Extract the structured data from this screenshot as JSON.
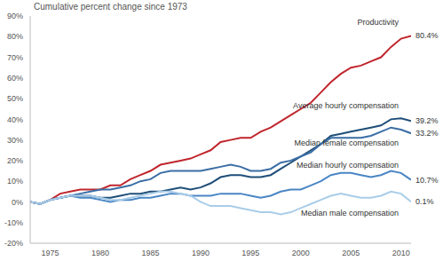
{
  "chart_data": {
    "type": "line",
    "title": "Cumulative percent change since 1973",
    "grid": false,
    "x": [
      1973,
      1974,
      1975,
      1976,
      1977,
      1978,
      1979,
      1980,
      1981,
      1982,
      1983,
      1984,
      1985,
      1986,
      1987,
      1988,
      1989,
      1990,
      1991,
      1992,
      1993,
      1994,
      1995,
      1996,
      1997,
      1998,
      1999,
      2000,
      2001,
      2002,
      2003,
      2004,
      2005,
      2006,
      2007,
      2008,
      2009,
      2010,
      2011
    ],
    "xlim": [
      1973,
      2011
    ],
    "xticks": [
      1975,
      1980,
      1985,
      1990,
      1995,
      2000,
      2005,
      2010
    ],
    "ylim": [
      -20,
      90
    ],
    "yticks": [
      {
        "value": -20,
        "label": "-20%"
      },
      {
        "value": -10,
        "label": "-10%"
      },
      {
        "value": 0,
        "label": "0%"
      },
      {
        "value": 10,
        "label": "10%"
      },
      {
        "value": 20,
        "label": "20%"
      },
      {
        "value": 30,
        "label": "30%"
      },
      {
        "value": 40,
        "label": "40%"
      },
      {
        "value": 50,
        "label": "50%"
      },
      {
        "value": 60,
        "label": "60%"
      },
      {
        "value": 70,
        "label": "70%"
      },
      {
        "value": 80,
        "label": "80%"
      },
      {
        "value": 90,
        "label": "90%"
      }
    ],
    "series": [
      {
        "name": "Productivity",
        "color": "#c0262d",
        "values": [
          0,
          -1,
          1,
          4,
          5,
          6,
          6,
          6,
          8,
          8,
          11,
          13,
          15,
          18,
          19,
          20,
          21,
          23,
          25,
          29,
          30,
          31,
          31,
          34,
          36,
          39,
          42,
          45,
          48,
          53,
          58,
          62,
          65,
          66,
          68,
          70,
          75,
          79,
          80.4
        ],
        "value_labels": [
          null,
          null,
          null,
          null,
          null,
          null,
          null,
          null,
          null,
          null,
          null,
          null,
          null,
          null,
          null,
          null,
          null,
          null,
          null,
          null,
          null,
          null,
          null,
          null,
          null,
          null,
          null,
          null,
          null,
          null,
          null,
          null,
          null,
          null,
          null,
          null,
          null,
          null,
          "80.4%"
        ]
      },
      {
        "name": "Average hourly compensation",
        "color": "#1f4e79",
        "values": [
          0,
          -1,
          1,
          2,
          3,
          3,
          3,
          2,
          2,
          3,
          4,
          4,
          5,
          5,
          6,
          7,
          6,
          7,
          9,
          12,
          13,
          13,
          12,
          12,
          13,
          16,
          19,
          22,
          25,
          28,
          32,
          33,
          34,
          35,
          36,
          37,
          40,
          40.5,
          39.2
        ],
        "value_labels": [
          null,
          null,
          null,
          null,
          null,
          null,
          null,
          null,
          null,
          null,
          null,
          null,
          null,
          null,
          null,
          null,
          null,
          null,
          null,
          null,
          null,
          null,
          null,
          null,
          null,
          null,
          null,
          null,
          null,
          null,
          null,
          null,
          null,
          null,
          null,
          null,
          null,
          null,
          "39.2%"
        ]
      },
      {
        "name": "Median female compensation",
        "color": "#3a6ea5",
        "values": [
          0,
          -1,
          1,
          2,
          3,
          4,
          5,
          6,
          6,
          7,
          8,
          10,
          11,
          14,
          15,
          15,
          15,
          15,
          16,
          17,
          18,
          17,
          15,
          15,
          16,
          19,
          20,
          22,
          24,
          28,
          31,
          31,
          31,
          31,
          32,
          34,
          36,
          35,
          33.2
        ],
        "value_labels": [
          null,
          null,
          null,
          null,
          null,
          null,
          null,
          null,
          null,
          null,
          null,
          null,
          null,
          null,
          null,
          null,
          null,
          null,
          null,
          null,
          null,
          null,
          null,
          null,
          null,
          null,
          null,
          null,
          null,
          null,
          null,
          null,
          null,
          null,
          null,
          null,
          null,
          null,
          "33.2%"
        ]
      },
      {
        "name": "Median hourly compensation",
        "color": "#4a86c5",
        "values": [
          0,
          -1,
          1,
          2,
          3,
          2,
          2,
          1,
          0,
          1,
          1,
          2,
          2,
          3,
          4,
          4,
          3,
          3,
          3,
          4,
          4,
          4,
          3,
          2,
          3,
          5,
          6,
          6,
          8,
          10,
          13,
          14,
          14,
          13,
          12,
          13,
          15,
          14,
          10.7
        ],
        "value_labels": [
          null,
          null,
          null,
          null,
          null,
          null,
          null,
          null,
          null,
          null,
          null,
          null,
          null,
          null,
          null,
          null,
          null,
          null,
          null,
          null,
          null,
          null,
          null,
          null,
          null,
          null,
          null,
          null,
          null,
          null,
          null,
          null,
          null,
          null,
          null,
          null,
          null,
          null,
          "10.7%"
        ]
      },
      {
        "name": "Median male compensation",
        "color": "#a9cde9",
        "values": [
          0,
          -1,
          1,
          2,
          3,
          3,
          3,
          2,
          1,
          1,
          2,
          3,
          4,
          5,
          5,
          4,
          3,
          0,
          -2,
          -2,
          -2,
          -3,
          -4,
          -5,
          -5,
          -6,
          -5,
          -3,
          -1,
          1,
          3,
          4,
          3,
          2,
          2,
          3,
          5,
          4,
          0.1
        ],
        "value_labels": [
          null,
          null,
          null,
          null,
          null,
          null,
          null,
          null,
          null,
          null,
          null,
          null,
          null,
          null,
          null,
          null,
          null,
          null,
          null,
          null,
          null,
          null,
          null,
          null,
          null,
          null,
          null,
          null,
          null,
          null,
          null,
          null,
          null,
          null,
          null,
          null,
          null,
          null,
          "0.1%"
        ]
      }
    ]
  }
}
